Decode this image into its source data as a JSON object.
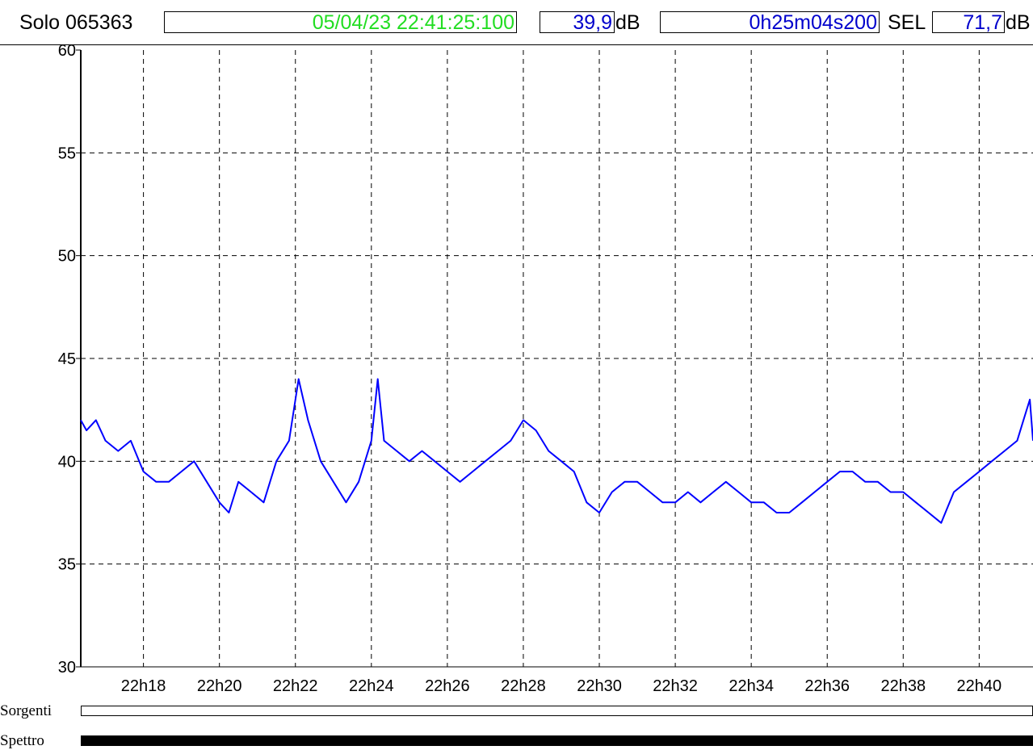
{
  "header": {
    "device": "Solo 065363",
    "datetime": "05/04/23 22:41:25:100",
    "leq_value": "39,9",
    "leq_unit": "dB",
    "duration": "0h25m04s200",
    "sel_label": "SEL",
    "sel_value": "71,7",
    "sel_unit": "dB",
    "colors": {
      "datetime": "#22dd22",
      "value": "#0000cc",
      "line": "#0000ff"
    }
  },
  "chart_data": {
    "type": "line",
    "title": "",
    "xlabel": "",
    "ylabel": "",
    "ylim": [
      30,
      60
    ],
    "xlim": [
      "22:16:21",
      "22:41:25"
    ],
    "yticks": [
      "30",
      "35",
      "40",
      "45",
      "50",
      "55",
      "60"
    ],
    "xticks": [
      "22h18",
      "22h20",
      "22h22",
      "22h24",
      "22h26",
      "22h28",
      "22h30",
      "22h32",
      "22h34",
      "22h36",
      "22h38",
      "22h40"
    ],
    "grid": true,
    "series": [
      {
        "color": "#0000ff",
        "x": [
          "22:16:21",
          "22:16:30",
          "22:16:45",
          "22:17:00",
          "22:17:20",
          "22:17:40",
          "22:18:00",
          "22:18:20",
          "22:18:40",
          "22:19:00",
          "22:19:20",
          "22:19:40",
          "22:20:00",
          "22:20:15",
          "22:20:30",
          "22:20:50",
          "22:21:10",
          "22:21:30",
          "22:21:50",
          "22:22:05",
          "22:22:20",
          "22:22:40",
          "22:23:00",
          "22:23:20",
          "22:23:40",
          "22:24:00",
          "22:24:10",
          "22:24:20",
          "22:24:40",
          "22:25:00",
          "22:25:20",
          "22:25:40",
          "22:26:00",
          "22:26:20",
          "22:26:40",
          "22:27:00",
          "22:27:20",
          "22:27:40",
          "22:28:00",
          "22:28:20",
          "22:28:40",
          "22:29:00",
          "22:29:20",
          "22:29:40",
          "22:30:00",
          "22:30:20",
          "22:30:40",
          "22:31:00",
          "22:31:20",
          "22:31:40",
          "22:32:00",
          "22:32:20",
          "22:32:40",
          "22:33:00",
          "22:33:20",
          "22:33:40",
          "22:34:00",
          "22:34:20",
          "22:34:40",
          "22:35:00",
          "22:35:20",
          "22:35:40",
          "22:36:00",
          "22:36:20",
          "22:36:40",
          "22:37:00",
          "22:37:20",
          "22:37:40",
          "22:38:00",
          "22:38:20",
          "22:38:40",
          "22:39:00",
          "22:39:20",
          "22:39:40",
          "22:40:00",
          "22:40:20",
          "22:40:40",
          "22:41:00",
          "22:41:10",
          "22:41:20",
          "22:41:25"
        ],
        "y": [
          42,
          41.5,
          42,
          41,
          40.5,
          41,
          39.5,
          39,
          39,
          39.5,
          40,
          39,
          38,
          37.5,
          39,
          38.5,
          38,
          40,
          41,
          44,
          42,
          40,
          39,
          38,
          39,
          41,
          44,
          41,
          40.5,
          40,
          40.5,
          40,
          39.5,
          39,
          39.5,
          40,
          40.5,
          41,
          42,
          41.5,
          40.5,
          40,
          39.5,
          38,
          37.5,
          38.5,
          39,
          39,
          38.5,
          38,
          38,
          38.5,
          38,
          38.5,
          39,
          38.5,
          38,
          38,
          37.5,
          37.5,
          38,
          38.5,
          39,
          39.5,
          39.5,
          39,
          39,
          38.5,
          38.5,
          38,
          37.5,
          37,
          38.5,
          39,
          39.5,
          40,
          40.5,
          41,
          42,
          43,
          41
        ]
      }
    ]
  },
  "sources": {
    "sorgenti_label": "Sorgenti",
    "spettro_label": "Spettro"
  }
}
